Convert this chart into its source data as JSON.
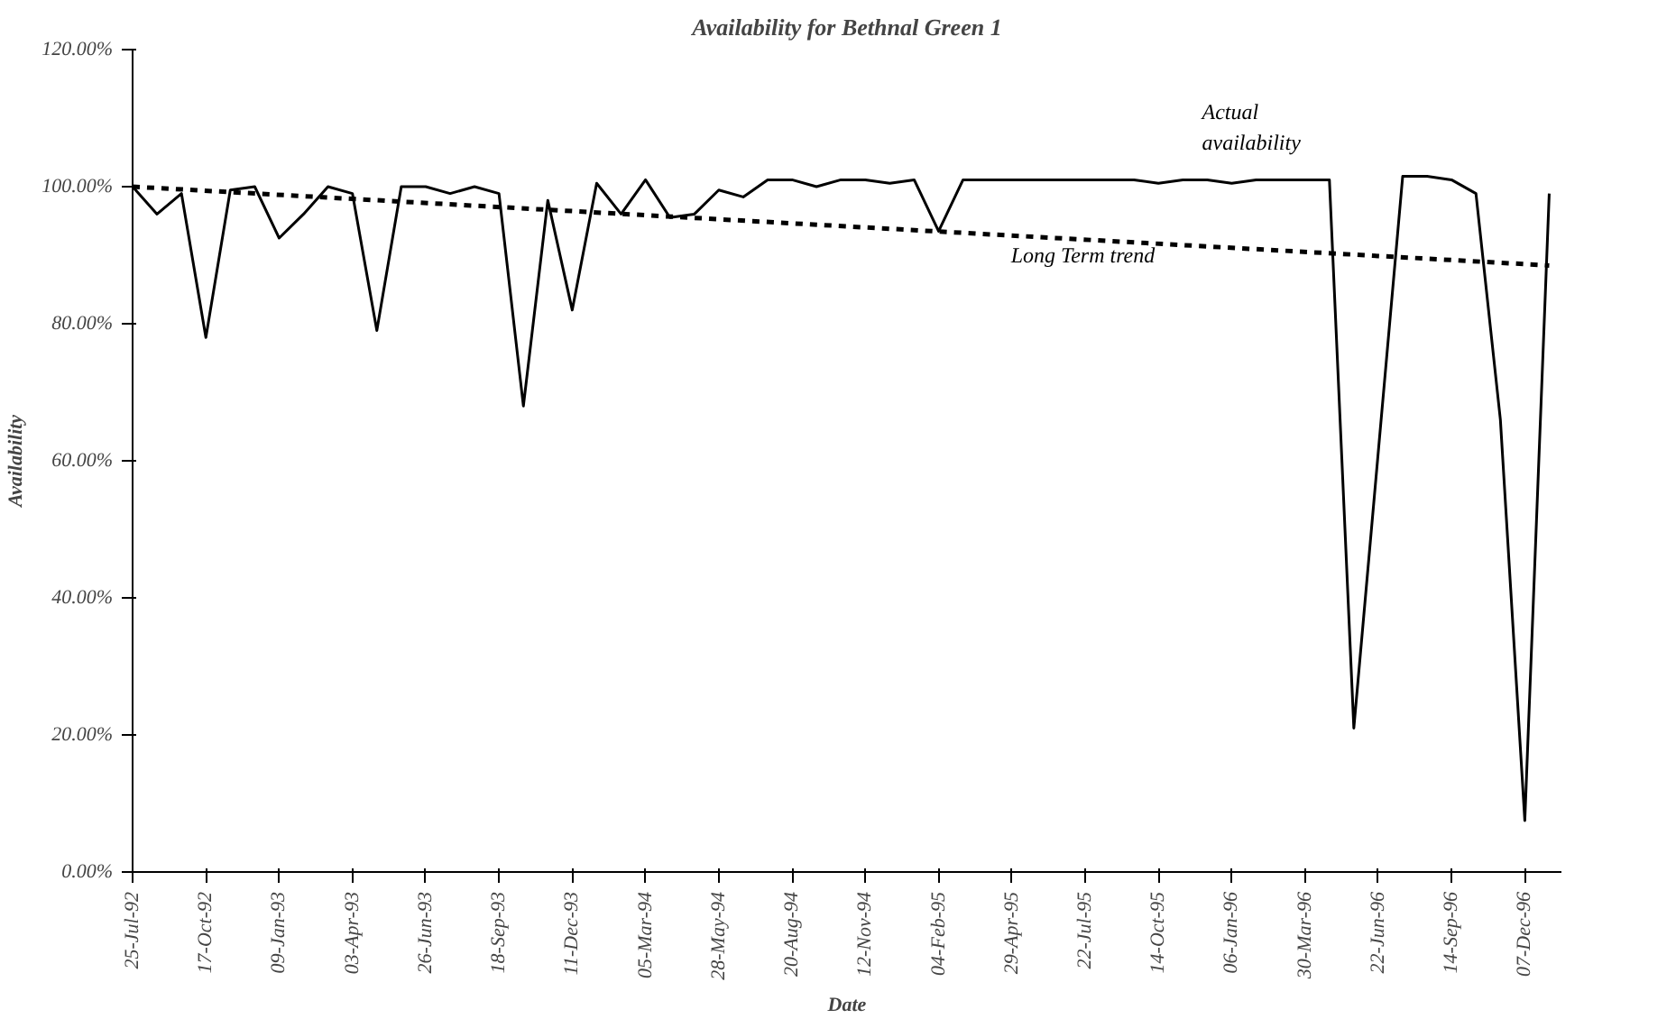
{
  "chart_data": {
    "type": "line",
    "title": "Availability for Bethnal Green 1",
    "xlabel": "Date",
    "ylabel": "Availability",
    "xlim": [
      "1992-07-25",
      "1997-01-18"
    ],
    "ylim": [
      0,
      120
    ],
    "yticks": [
      {
        "value": 0,
        "label": "0.00%"
      },
      {
        "value": 20,
        "label": "20.00%"
      },
      {
        "value": 40,
        "label": "40.00%"
      },
      {
        "value": 60,
        "label": "60.00%"
      },
      {
        "value": 80,
        "label": "80.00%"
      },
      {
        "value": 100,
        "label": "100.00%"
      },
      {
        "value": 120,
        "label": "120.00%"
      }
    ],
    "xticks": [
      {
        "value": "1992-07-25",
        "label": "25-Jul-92"
      },
      {
        "value": "1992-10-17",
        "label": "17-Oct-92"
      },
      {
        "value": "1993-01-09",
        "label": "09-Jan-93"
      },
      {
        "value": "1993-04-03",
        "label": "03-Apr-93"
      },
      {
        "value": "1993-06-26",
        "label": "26-Jun-93"
      },
      {
        "value": "1993-09-18",
        "label": "18-Sep-93"
      },
      {
        "value": "1993-12-11",
        "label": "11-Dec-93"
      },
      {
        "value": "1994-03-05",
        "label": "05-Mar-94"
      },
      {
        "value": "1994-05-28",
        "label": "28-May-94"
      },
      {
        "value": "1994-08-20",
        "label": "20-Aug-94"
      },
      {
        "value": "1994-11-12",
        "label": "12-Nov-94"
      },
      {
        "value": "1995-02-04",
        "label": "04-Feb-95"
      },
      {
        "value": "1995-04-29",
        "label": "29-Apr-95"
      },
      {
        "value": "1995-07-22",
        "label": "22-Jul-95"
      },
      {
        "value": "1995-10-14",
        "label": "14-Oct-95"
      },
      {
        "value": "1996-01-06",
        "label": "06-Jan-96"
      },
      {
        "value": "1996-03-30",
        "label": "30-Mar-96"
      },
      {
        "value": "1996-06-22",
        "label": "22-Jun-96"
      },
      {
        "value": "1996-09-14",
        "label": "14-Sep-96"
      },
      {
        "value": "1996-12-07",
        "label": "07-Dec-96"
      }
    ],
    "grid": false,
    "legend": false,
    "marker": "none",
    "series": [
      {
        "name": "Actual availability",
        "color": "#000000",
        "line_style": "solid",
        "x": [
          "1992-07-25",
          "1992-08-22",
          "1992-09-19",
          "1992-10-17",
          "1992-11-14",
          "1992-12-12",
          "1993-01-09",
          "1993-02-06",
          "1993-03-06",
          "1993-04-03",
          "1993-05-01",
          "1993-05-29",
          "1993-06-26",
          "1993-07-24",
          "1993-08-21",
          "1993-09-18",
          "1993-10-16",
          "1993-11-13",
          "1993-12-11",
          "1994-01-08",
          "1994-02-05",
          "1994-03-05",
          "1994-04-02",
          "1994-04-30",
          "1994-05-28",
          "1994-06-25",
          "1994-07-23",
          "1994-08-20",
          "1994-09-17",
          "1994-10-15",
          "1994-11-12",
          "1994-12-10",
          "1995-01-07",
          "1995-02-04",
          "1995-03-04",
          "1995-04-01",
          "1995-04-29",
          "1995-05-27",
          "1995-06-24",
          "1995-07-22",
          "1995-08-19",
          "1995-09-16",
          "1995-10-14",
          "1995-11-11",
          "1995-12-09",
          "1996-01-06",
          "1996-02-03",
          "1996-03-02",
          "1996-03-30",
          "1996-04-27",
          "1996-05-25",
          "1996-07-20",
          "1996-08-17",
          "1996-09-14",
          "1996-10-12",
          "1996-11-09",
          "1996-12-07",
          "1997-01-04"
        ],
        "values": [
          100,
          96,
          99,
          78,
          99.5,
          100,
          92.5,
          96,
          100,
          99,
          79,
          100,
          100,
          99,
          100,
          99,
          68,
          98,
          82,
          100.5,
          96,
          101,
          95.5,
          96,
          99.5,
          98.5,
          101,
          101,
          100,
          101,
          101,
          100.5,
          101,
          93.5,
          101,
          101,
          101,
          101,
          101,
          101,
          101,
          101,
          100.5,
          101,
          101,
          100.5,
          101,
          101,
          101,
          101,
          21,
          101.5,
          101.5,
          101,
          99,
          66,
          7.5,
          99
        ]
      },
      {
        "name": "Long Term trend",
        "color": "#000000",
        "line_style": "dashed",
        "x": [
          "1992-07-25",
          "1997-01-04"
        ],
        "values": [
          100,
          88.5
        ]
      }
    ]
  }
}
